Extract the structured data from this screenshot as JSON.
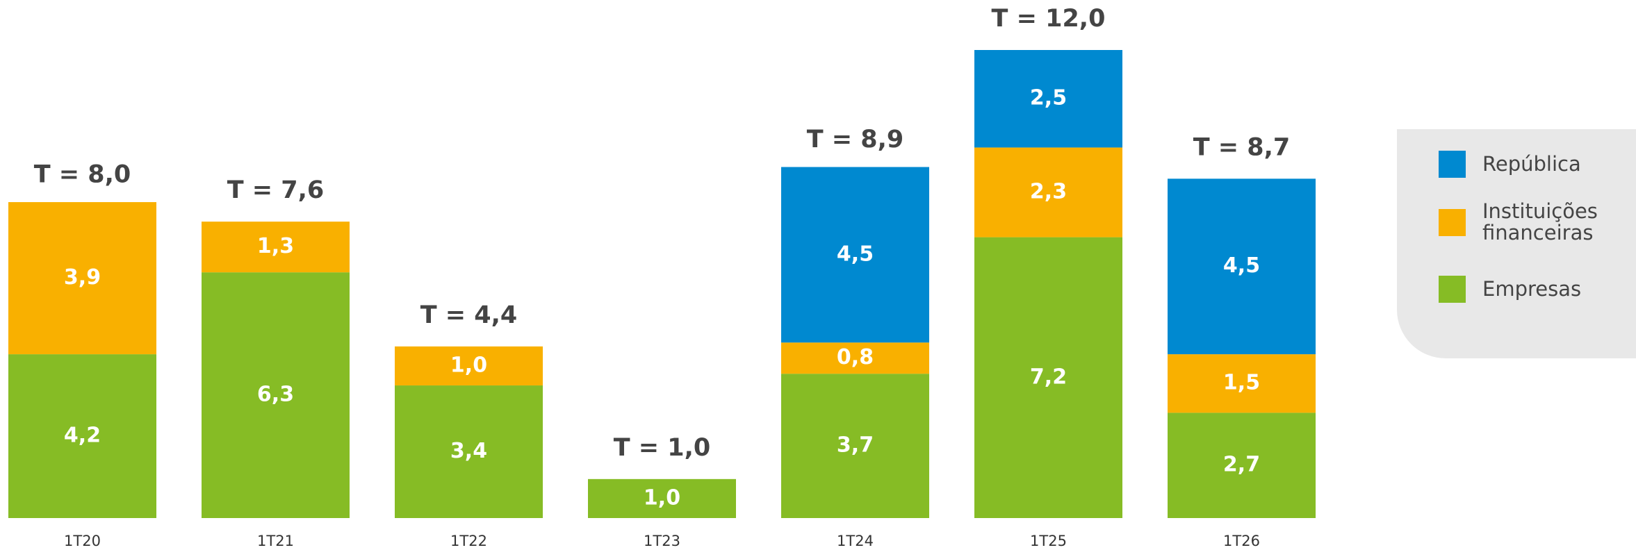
{
  "chart_data": {
    "type": "stacked_bar",
    "categories": [
      "1T20",
      "1T21",
      "1T22",
      "1T23",
      "1T24",
      "1T25",
      "1T26"
    ],
    "series": [
      {
        "name": "Empresas",
        "color": "#86bc25",
        "values": [
          4.2,
          6.3,
          3.4,
          1.0,
          3.7,
          7.2,
          2.7
        ],
        "value_labels": [
          "4,2",
          "6,3",
          "3,4",
          "1,0",
          "3,7",
          "7,2",
          "2,7"
        ]
      },
      {
        "name": "Instituições financeiras",
        "color": "#f9b000",
        "values": [
          3.9,
          1.3,
          1.0,
          null,
          0.8,
          2.3,
          1.5
        ],
        "value_labels": [
          "3,9",
          "1,3",
          "1,0",
          null,
          "0,8",
          "2,3",
          "1,5"
        ]
      },
      {
        "name": "República",
        "color": "#0089d0",
        "values": [
          null,
          null,
          null,
          null,
          4.5,
          2.5,
          4.5
        ],
        "value_labels": [
          null,
          null,
          null,
          null,
          "4,5",
          "2,5",
          "4,5"
        ]
      }
    ],
    "totals": [
      8.0,
      7.6,
      4.4,
      1.0,
      8.9,
      12.0,
      8.7
    ],
    "total_labels": [
      "T =  8,0",
      "T =  7,6",
      "T =  4,4",
      "T =  1,0",
      "T =  8,9",
      "T =  12,0",
      "T =  8,7"
    ],
    "legend": "right"
  }
}
